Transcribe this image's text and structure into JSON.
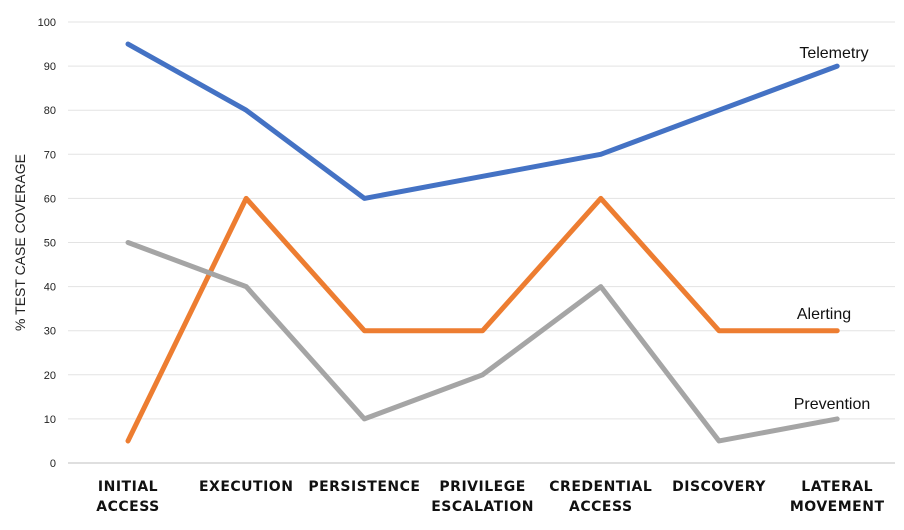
{
  "chart_data": {
    "type": "line",
    "title": "",
    "xlabel": "",
    "ylabel": "% TEST CASE COVERAGE",
    "ylim": [
      0,
      100
    ],
    "yticks": [
      0,
      10,
      20,
      30,
      40,
      50,
      60,
      70,
      80,
      90,
      100
    ],
    "grid": "horizontal",
    "legend": "inline labels at right end",
    "categories": [
      [
        "INITIAL",
        "ACCESS"
      ],
      [
        "EXECUTION"
      ],
      [
        "PERSISTENCE"
      ],
      [
        "PRIVILEGE",
        "ESCALATION"
      ],
      [
        "CREDENTIAL",
        "ACCESS"
      ],
      [
        "DISCOVERY"
      ],
      [
        "LATERAL",
        "MOVEMENT"
      ]
    ],
    "series": [
      {
        "name": "Telemetry",
        "color": "#4472c4",
        "values": [
          95,
          80,
          60,
          65,
          70,
          80,
          90
        ]
      },
      {
        "name": "Alerting",
        "color": "#ed7d31",
        "values": [
          5,
          60,
          30,
          30,
          60,
          30,
          30
        ]
      },
      {
        "name": "Prevention",
        "color": "#a5a5a5",
        "values": [
          50,
          40,
          10,
          20,
          40,
          5,
          10
        ]
      }
    ]
  }
}
